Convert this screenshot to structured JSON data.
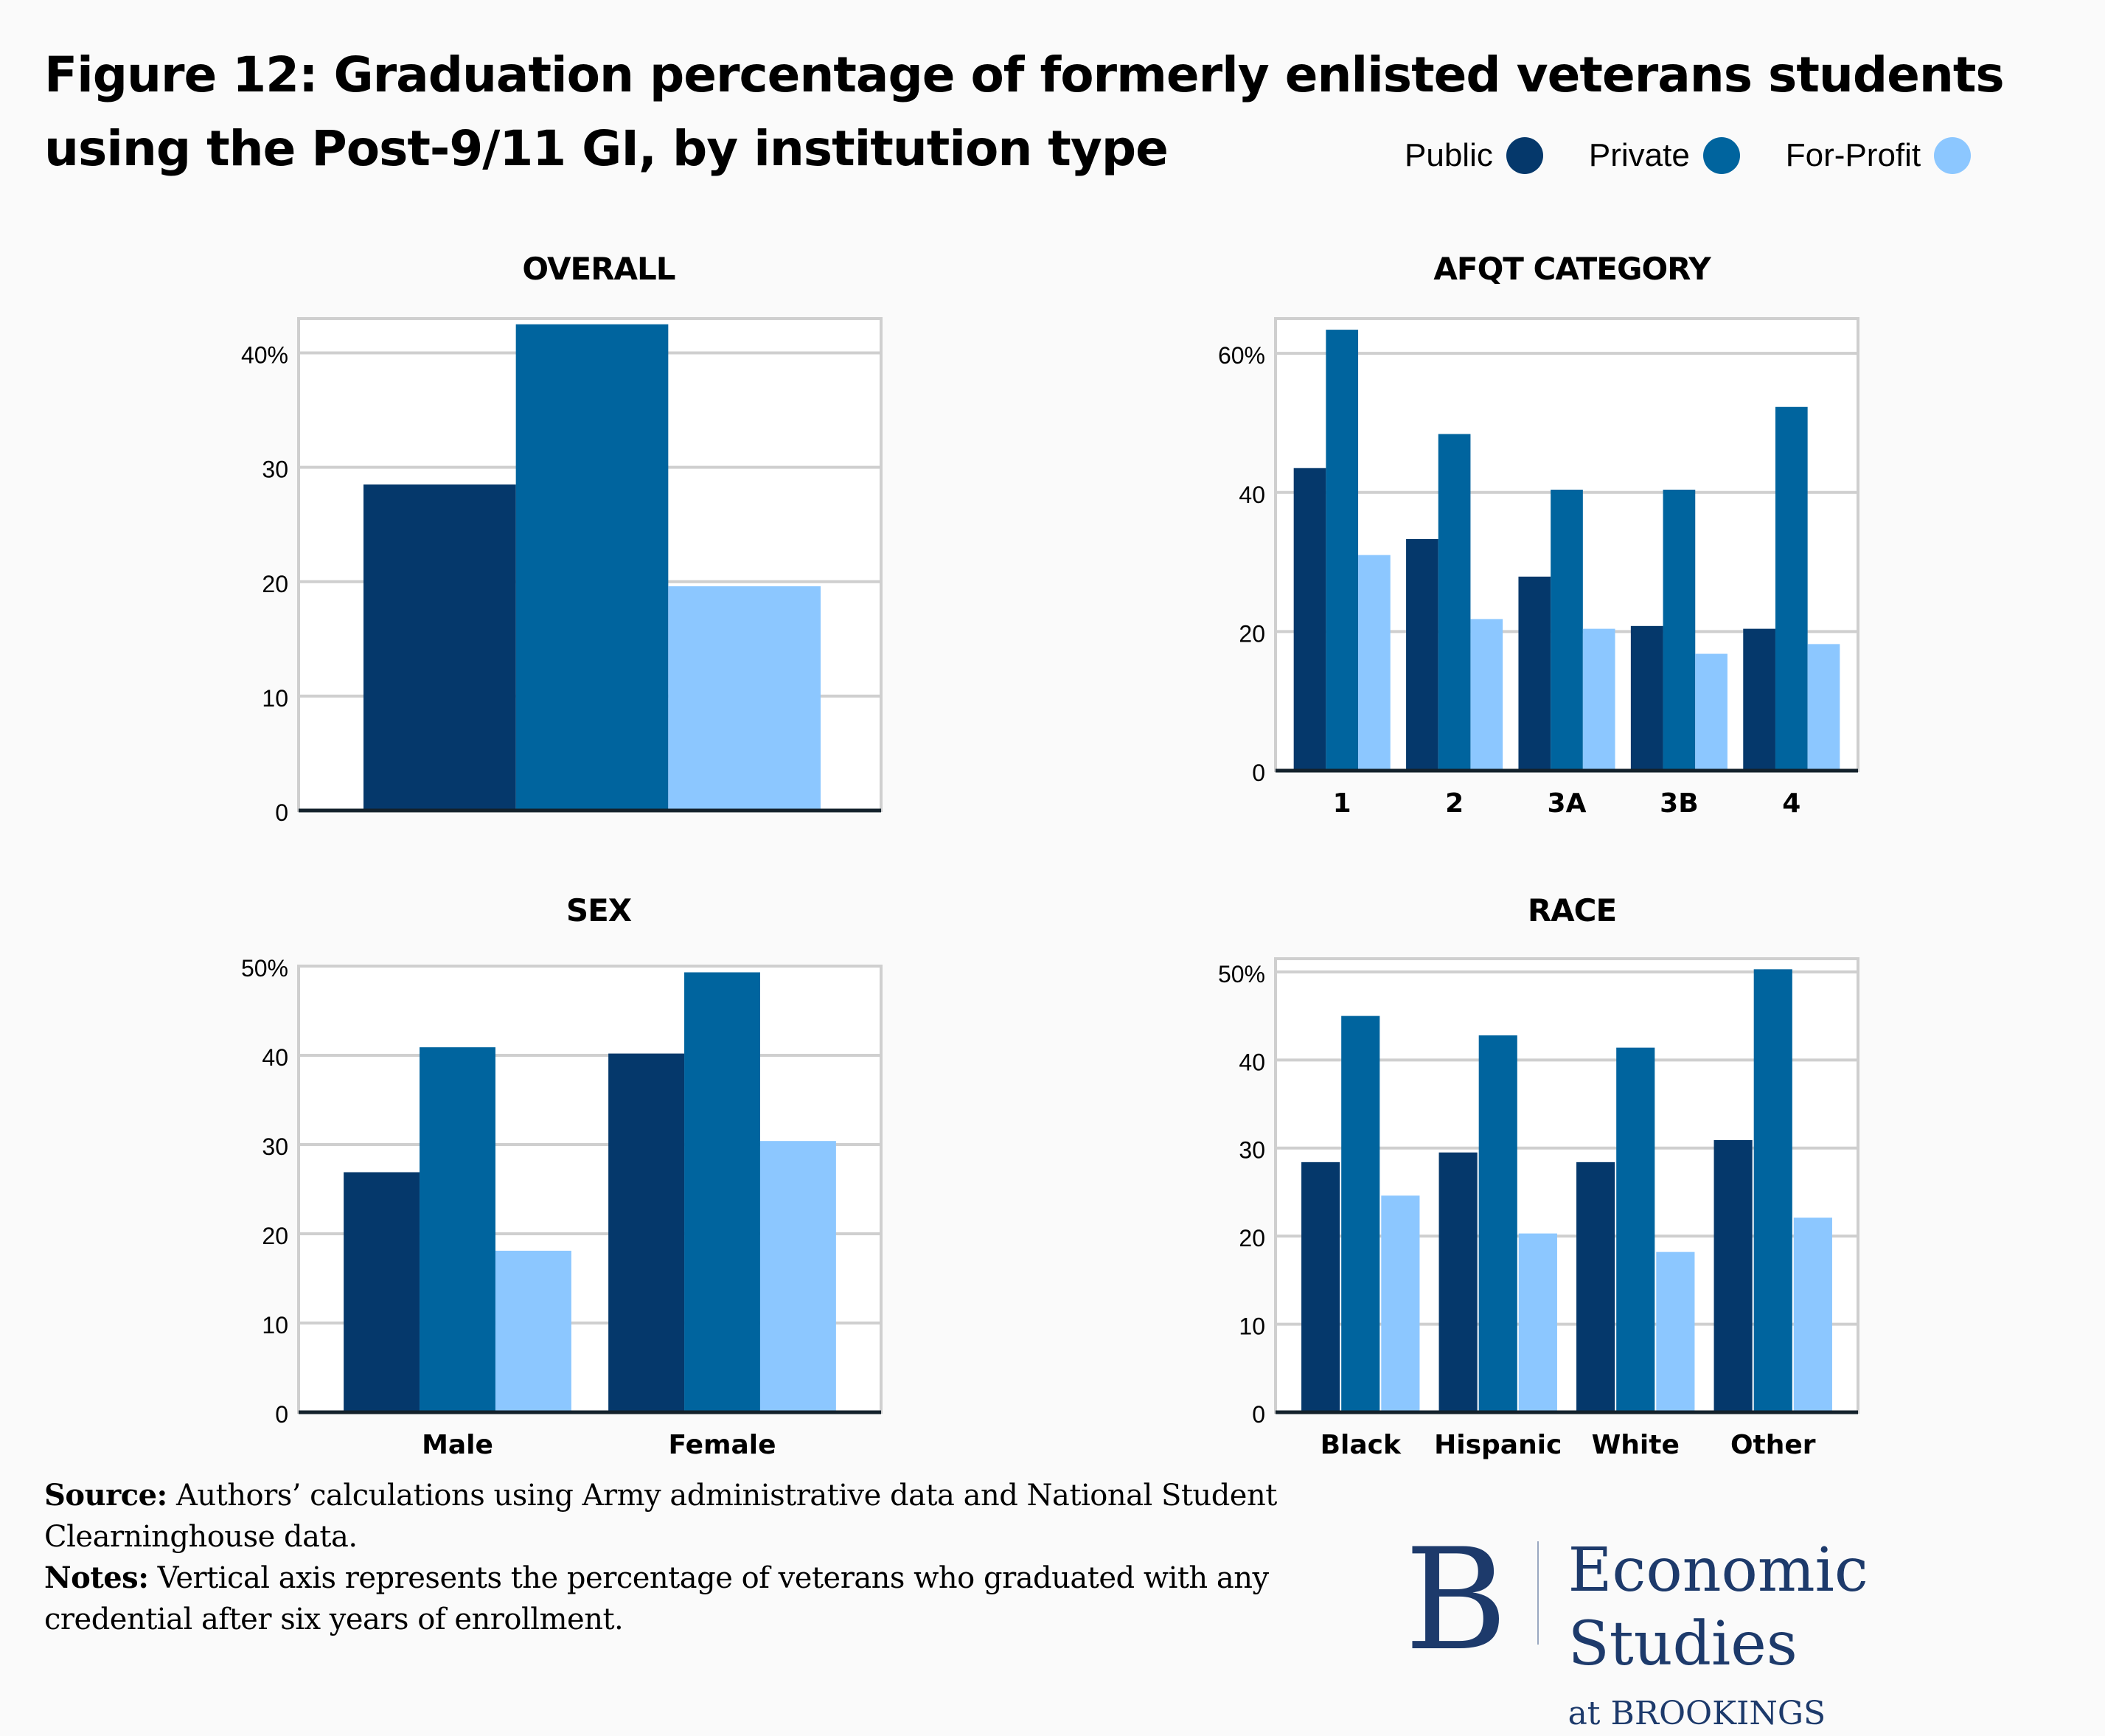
{
  "title": "Figure 12: Graduation percentage of formerly enlisted veterans students using the Post-9/11 GI, by institution type",
  "legend": [
    {
      "label": "Public",
      "color": "#05386b"
    },
    {
      "label": "Private",
      "color": "#00649e"
    },
    {
      "label": "For-Profit",
      "color": "#8cc7ff"
    }
  ],
  "chart_data": [
    {
      "type": "bar",
      "title": "OVERALL",
      "categories": [
        ""
      ],
      "series": [
        {
          "name": "Public",
          "values": [
            28.5
          ]
        },
        {
          "name": "Private",
          "values": [
            42.5
          ]
        },
        {
          "name": "For-Profit",
          "values": [
            19.6
          ]
        }
      ],
      "ylim": [
        0,
        43
      ],
      "yticks": [
        0,
        10,
        20,
        30,
        40
      ],
      "ytick_labels": [
        "0",
        "10",
        "20",
        "30",
        "40%"
      ],
      "xlabel": "",
      "ylabel": "",
      "grid": true
    },
    {
      "type": "bar",
      "title": "AFQT CATEGORY",
      "categories": [
        "1",
        "2",
        "3A",
        "3B",
        "4"
      ],
      "series": [
        {
          "name": "Public",
          "values": [
            43.5,
            33.3,
            27.9,
            20.8,
            20.4
          ]
        },
        {
          "name": "Private",
          "values": [
            63.4,
            48.4,
            40.4,
            40.4,
            52.3
          ]
        },
        {
          "name": "For-Profit",
          "values": [
            31.0,
            21.8,
            20.4,
            16.8,
            18.2
          ]
        }
      ],
      "ylim": [
        0,
        65
      ],
      "yticks": [
        0,
        20,
        40,
        60
      ],
      "ytick_labels": [
        "0",
        "20",
        "40",
        "60%"
      ],
      "xlabel": "",
      "ylabel": "",
      "grid": true
    },
    {
      "type": "bar",
      "title": "SEX",
      "categories": [
        "Male",
        "Female"
      ],
      "series": [
        {
          "name": "Public",
          "values": [
            26.9,
            40.2
          ]
        },
        {
          "name": "Private",
          "values": [
            40.9,
            49.3
          ]
        },
        {
          "name": "For-Profit",
          "values": [
            18.1,
            30.4
          ]
        }
      ],
      "ylim": [
        0,
        50
      ],
      "yticks": [
        0,
        10,
        20,
        30,
        40,
        50
      ],
      "ytick_labels": [
        "0",
        "10",
        "20",
        "30",
        "40",
        "50%"
      ],
      "xlabel": "",
      "ylabel": "",
      "grid": true
    },
    {
      "type": "bar",
      "title": "RACE",
      "categories": [
        "Black",
        "Hispanic",
        "White",
        "Other"
      ],
      "series": [
        {
          "name": "Public",
          "values": [
            28.4,
            29.5,
            28.4,
            30.9
          ]
        },
        {
          "name": "Private",
          "values": [
            45.0,
            42.8,
            41.4,
            50.3
          ]
        },
        {
          "name": "For-Profit",
          "values": [
            24.6,
            20.3,
            18.2,
            22.1
          ]
        }
      ],
      "ylim": [
        0,
        51.5
      ],
      "yticks": [
        0,
        10,
        20,
        30,
        40,
        50
      ],
      "ytick_labels": [
        "0",
        "10",
        "20",
        "30",
        "40",
        "50%"
      ],
      "xlabel": "",
      "ylabel": "",
      "grid": true
    }
  ],
  "footer": {
    "source_label": "Source:",
    "source_text": " Authors’ calculations using Army administrative data and National Student Clearninghouse data.",
    "notes_label": "Notes:",
    "notes_text": " Vertical axis represents the percentage of veterans who graduated with any credential after six years of enrollment."
  },
  "brand": {
    "letter": "B",
    "line1": "Economic Studies",
    "line2": "at BROOKINGS"
  }
}
